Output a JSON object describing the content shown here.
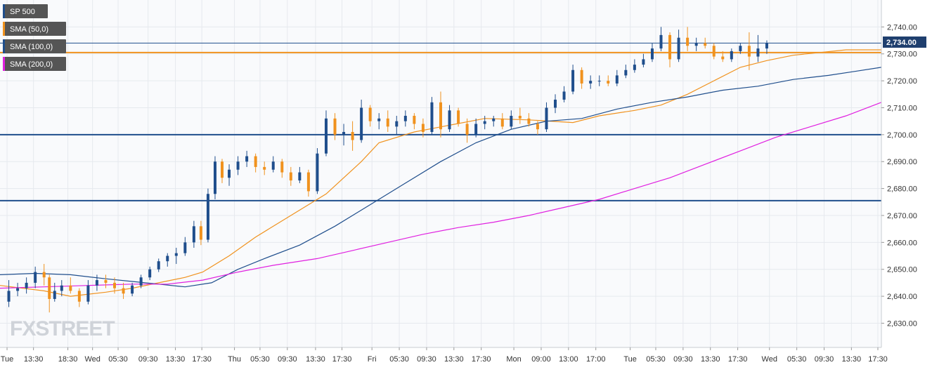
{
  "legend": [
    {
      "label": "SP 500",
      "color": "#1f4e8c"
    },
    {
      "label": "SMA (50,0)",
      "color": "#f0921e"
    },
    {
      "label": "SMA (100,0)",
      "color": "#1f4e8c"
    },
    {
      "label": "SMA (200,0)",
      "color": "#e020e0"
    }
  ],
  "price_label": "2,734.00",
  "watermark": "FXSTREET",
  "colors": {
    "up": "#1f4e8c",
    "down": "#f0921e",
    "sma50": "#f0921e",
    "sma100": "#1f4e8c",
    "sma200": "#e020e0",
    "level": "#1f4e8c",
    "grid": "#e6e9ee",
    "axis_text": "#333333"
  },
  "chart_data": {
    "type": "candlestick",
    "y_range": [
      2621,
      2750
    ],
    "y_ticks": [
      {
        "v": 2740,
        "label": "2,740.00"
      },
      {
        "v": 2730,
        "label": "2,730.00"
      },
      {
        "v": 2720,
        "label": "2,720.00"
      },
      {
        "v": 2710,
        "label": "2,710.00"
      },
      {
        "v": 2700,
        "label": "2,700.00"
      },
      {
        "v": 2690,
        "label": "2,690.00"
      },
      {
        "v": 2680,
        "label": "2,680.00"
      },
      {
        "v": 2670,
        "label": "2,670.00"
      },
      {
        "v": 2660,
        "label": "2,660.00"
      },
      {
        "v": 2650,
        "label": "2,650.00"
      },
      {
        "v": 2640,
        "label": "2,640.00"
      },
      {
        "v": 2630,
        "label": "2,630.00"
      }
    ],
    "x_range": [
      0,
      100
    ],
    "x_ticks": [
      {
        "x": 0.8,
        "label": "Tue"
      },
      {
        "x": 3.8,
        "label": "13:30"
      },
      {
        "x": 7.7,
        "label": "18:30"
      },
      {
        "x": 10.5,
        "label": "Wed"
      },
      {
        "x": 13.4,
        "label": "05:30"
      },
      {
        "x": 16.8,
        "label": "09:30"
      },
      {
        "x": 19.9,
        "label": "13:30"
      },
      {
        "x": 22.9,
        "label": "17:30"
      },
      {
        "x": 26.6,
        "label": "Thu"
      },
      {
        "x": 29.5,
        "label": "05:30"
      },
      {
        "x": 32.6,
        "label": "09:30"
      },
      {
        "x": 35.8,
        "label": "13:30"
      },
      {
        "x": 38.8,
        "label": "17:30"
      },
      {
        "x": 42.2,
        "label": "Fri"
      },
      {
        "x": 45.3,
        "label": "05:30"
      },
      {
        "x": 48.4,
        "label": "09:30"
      },
      {
        "x": 51.5,
        "label": "13:30"
      },
      {
        "x": 54.6,
        "label": "17:30"
      },
      {
        "x": 58.3,
        "label": "Mon"
      },
      {
        "x": 61.4,
        "label": "09:00"
      },
      {
        "x": 64.5,
        "label": "13:00"
      },
      {
        "x": 67.6,
        "label": "17:00"
      },
      {
        "x": 71.5,
        "label": "Tue"
      },
      {
        "x": 74.4,
        "label": "05:30"
      },
      {
        "x": 77.5,
        "label": "09:30"
      },
      {
        "x": 80.6,
        "label": "13:30"
      },
      {
        "x": 83.7,
        "label": "17:30"
      },
      {
        "x": 87.3,
        "label": "Wed"
      },
      {
        "x": 90.4,
        "label": "05:30"
      },
      {
        "x": 93.5,
        "label": "09:30"
      },
      {
        "x": 96.6,
        "label": "13:30"
      },
      {
        "x": 99.6,
        "label": "17:30"
      }
    ],
    "horizontal_levels": [
      {
        "v": 2734,
        "color": "#1f4e8c",
        "width": 1
      },
      {
        "v": 2730.5,
        "color": "#f0921e",
        "width": 2
      },
      {
        "v": 2700,
        "color": "#1f4e8c",
        "width": 2
      },
      {
        "v": 2675.5,
        "color": "#1f4e8c",
        "width": 2
      }
    ],
    "sma50": [
      [
        0,
        2644
      ],
      [
        5,
        2642
      ],
      [
        8,
        2640
      ],
      [
        12,
        2641.5
      ],
      [
        15,
        2643
      ],
      [
        18,
        2645
      ],
      [
        21,
        2647
      ],
      [
        23,
        2649
      ],
      [
        26,
        2655
      ],
      [
        29,
        2662
      ],
      [
        33,
        2670
      ],
      [
        37,
        2678
      ],
      [
        41,
        2690
      ],
      [
        43,
        2697
      ],
      [
        47,
        2701
      ],
      [
        51,
        2703.5
      ],
      [
        55,
        2706
      ],
      [
        60,
        2705.5
      ],
      [
        65,
        2704.5
      ],
      [
        68,
        2707
      ],
      [
        72,
        2709
      ],
      [
        75,
        2711
      ],
      [
        78,
        2715
      ],
      [
        81,
        2720
      ],
      [
        84,
        2725
      ],
      [
        87,
        2727.5
      ],
      [
        90,
        2729.5
      ],
      [
        93,
        2730.5
      ],
      [
        96,
        2731.5
      ],
      [
        100,
        2731.5
      ]
    ],
    "sma100": [
      [
        0,
        2648
      ],
      [
        4,
        2648.5
      ],
      [
        8,
        2648
      ],
      [
        12,
        2646.5
      ],
      [
        15,
        2645.5
      ],
      [
        18,
        2644.5
      ],
      [
        21,
        2643.5
      ],
      [
        24,
        2645
      ],
      [
        27,
        2650
      ],
      [
        30,
        2654
      ],
      [
        34,
        2659
      ],
      [
        38,
        2666
      ],
      [
        42,
        2674
      ],
      [
        46,
        2682
      ],
      [
        50,
        2690
      ],
      [
        54,
        2697
      ],
      [
        58,
        2702
      ],
      [
        62,
        2705
      ],
      [
        66,
        2706
      ],
      [
        70,
        2709.5
      ],
      [
        74,
        2712
      ],
      [
        78,
        2714
      ],
      [
        82,
        2716.5
      ],
      [
        86,
        2718
      ],
      [
        90,
        2720.5
      ],
      [
        94,
        2722
      ],
      [
        97,
        2723.5
      ],
      [
        100,
        2725
      ]
    ],
    "sma200": [
      [
        0,
        2643
      ],
      [
        5,
        2643.5
      ],
      [
        10,
        2644
      ],
      [
        15,
        2644.5
      ],
      [
        19,
        2644.5
      ],
      [
        23,
        2646
      ],
      [
        27,
        2649
      ],
      [
        31,
        2651.5
      ],
      [
        36,
        2654
      ],
      [
        40,
        2657
      ],
      [
        44,
        2660
      ],
      [
        48,
        2663
      ],
      [
        52,
        2665.5
      ],
      [
        56,
        2667.5
      ],
      [
        60,
        2670
      ],
      [
        64,
        2673
      ],
      [
        68,
        2676
      ],
      [
        72,
        2680
      ],
      [
        76,
        2684
      ],
      [
        80,
        2689
      ],
      [
        84,
        2694
      ],
      [
        88,
        2699
      ],
      [
        92,
        2703
      ],
      [
        96,
        2707
      ],
      [
        100,
        2712
      ]
    ],
    "candles": [
      [
        1,
        2638,
        2646,
        2636,
        2642
      ],
      [
        2,
        2642,
        2645,
        2640,
        2643
      ],
      [
        3,
        2643,
        2647,
        2641,
        2645
      ],
      [
        4,
        2645,
        2651,
        2643,
        2649
      ],
      [
        5,
        2649,
        2652,
        2644,
        2647
      ],
      [
        5.6,
        2647,
        2648,
        2634,
        2639
      ],
      [
        6.2,
        2639,
        2645,
        2638,
        2642
      ],
      [
        7,
        2642,
        2646,
        2640,
        2644
      ],
      [
        8,
        2644,
        2647,
        2641,
        2642
      ],
      [
        9,
        2642,
        2643,
        2636,
        2638
      ],
      [
        10,
        2638,
        2646,
        2637,
        2644
      ],
      [
        11,
        2644,
        2648,
        2642,
        2646
      ],
      [
        12,
        2646,
        2648,
        2643,
        2645
      ],
      [
        13,
        2645,
        2647,
        2641,
        2643
      ],
      [
        14,
        2643,
        2645,
        2639,
        2641
      ],
      [
        15,
        2641,
        2645,
        2640,
        2644
      ],
      [
        16,
        2644,
        2648,
        2643,
        2647
      ],
      [
        17,
        2647,
        2651,
        2646,
        2650
      ],
      [
        18,
        2650,
        2654,
        2649,
        2653
      ],
      [
        19,
        2653,
        2656,
        2651,
        2655
      ],
      [
        20,
        2655,
        2658,
        2652,
        2656
      ],
      [
        21,
        2656,
        2662,
        2655,
        2660
      ],
      [
        22,
        2660,
        2668,
        2658,
        2666
      ],
      [
        22.8,
        2666,
        2668,
        2659,
        2661
      ],
      [
        23.6,
        2661,
        2680,
        2660,
        2678
      ],
      [
        24.4,
        2678,
        2692,
        2676,
        2690
      ],
      [
        25.2,
        2690,
        2691,
        2682,
        2684
      ],
      [
        26,
        2684,
        2689,
        2681,
        2687
      ],
      [
        27,
        2687,
        2692,
        2685,
        2690
      ],
      [
        28,
        2690,
        2694,
        2688,
        2692
      ],
      [
        29,
        2692,
        2693,
        2686,
        2688
      ],
      [
        30,
        2688,
        2690,
        2685,
        2687
      ],
      [
        31,
        2687,
        2692,
        2686,
        2690
      ],
      [
        32,
        2690,
        2691,
        2684,
        2686
      ],
      [
        33,
        2686,
        2688,
        2681,
        2683
      ],
      [
        34,
        2683,
        2688,
        2682,
        2686
      ],
      [
        35,
        2686,
        2687,
        2677,
        2679
      ],
      [
        36,
        2679,
        2695,
        2678,
        2693
      ],
      [
        37,
        2693,
        2709,
        2692,
        2706
      ],
      [
        38,
        2706,
        2708,
        2698,
        2700
      ],
      [
        39,
        2700,
        2704,
        2696,
        2701
      ],
      [
        40,
        2701,
        2705,
        2694,
        2698
      ],
      [
        41,
        2698,
        2713,
        2697,
        2710
      ],
      [
        42,
        2710,
        2711,
        2703,
        2705
      ],
      [
        43,
        2705,
        2708,
        2702,
        2706
      ],
      [
        44,
        2706,
        2709,
        2701,
        2703
      ],
      [
        45,
        2703,
        2707,
        2700,
        2705
      ],
      [
        46,
        2705,
        2709,
        2703,
        2707
      ],
      [
        47,
        2707,
        2708,
        2702,
        2704
      ],
      [
        48,
        2704,
        2706,
        2699,
        2701
      ],
      [
        49,
        2701,
        2714,
        2700,
        2712
      ],
      [
        50,
        2712,
        2716,
        2699,
        2702
      ],
      [
        51,
        2702,
        2711,
        2701,
        2709
      ],
      [
        52,
        2709,
        2710,
        2703,
        2704
      ],
      [
        53,
        2704,
        2706,
        2697,
        2700
      ],
      [
        54,
        2700,
        2706,
        2699,
        2704
      ],
      [
        55,
        2704,
        2707,
        2702,
        2705
      ],
      [
        56,
        2705,
        2707,
        2703,
        2706
      ],
      [
        57,
        2706,
        2708,
        2702,
        2703
      ],
      [
        58,
        2703,
        2709,
        2702,
        2707
      ],
      [
        59,
        2707,
        2710,
        2704,
        2706
      ],
      [
        60,
        2706,
        2708,
        2703,
        2704
      ],
      [
        61,
        2704,
        2705,
        2700,
        2702
      ],
      [
        62,
        2702,
        2712,
        2701,
        2710
      ],
      [
        63,
        2710,
        2715,
        2708,
        2713
      ],
      [
        64,
        2713,
        2718,
        2712,
        2716
      ],
      [
        65,
        2716,
        2726,
        2715,
        2724
      ],
      [
        66,
        2724,
        2725,
        2717,
        2719
      ],
      [
        67,
        2719,
        2722,
        2717,
        2720
      ],
      [
        68,
        2720,
        2722,
        2718,
        2720
      ],
      [
        69,
        2720,
        2722,
        2718,
        2719
      ],
      [
        70,
        2719,
        2724,
        2718,
        2722
      ],
      [
        71,
        2722,
        2726,
        2721,
        2724
      ],
      [
        72,
        2724,
        2728,
        2723,
        2726
      ],
      [
        73,
        2726,
        2730,
        2725,
        2728
      ],
      [
        74,
        2728,
        2734,
        2727,
        2732
      ],
      [
        75,
        2732,
        2740,
        2731,
        2737
      ],
      [
        76,
        2737,
        2738,
        2725,
        2728
      ],
      [
        77,
        2728,
        2739,
        2727,
        2736
      ],
      [
        78,
        2736,
        2740,
        2731,
        2733
      ],
      [
        79,
        2733,
        2736,
        2731,
        2734
      ],
      [
        80,
        2734,
        2736,
        2732,
        2733
      ],
      [
        81,
        2733,
        2734,
        2728,
        2729
      ],
      [
        82,
        2729,
        2731,
        2727,
        2728
      ],
      [
        83,
        2728,
        2732,
        2727,
        2731
      ],
      [
        84,
        2731,
        2734,
        2730,
        2733
      ],
      [
        85,
        2733,
        2738,
        2724,
        2729
      ],
      [
        86,
        2729,
        2737,
        2727,
        2732
      ],
      [
        87,
        2732,
        2735,
        2730,
        2734
      ]
    ]
  }
}
